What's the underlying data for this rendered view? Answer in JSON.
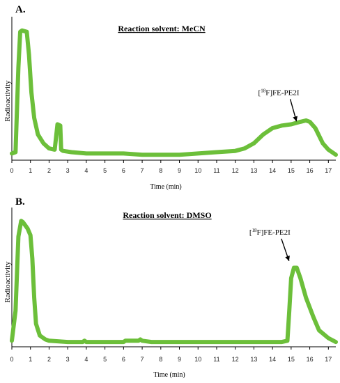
{
  "colors": {
    "trace": "#6cbf3a",
    "axis": "#000000",
    "tick": "#222222"
  },
  "charts": [
    {
      "panel": "A.",
      "title": "Reaction solvent: MeCN",
      "xlabel": "Time (min)",
      "ylabel": "Radioactivity",
      "xticks": [
        "0",
        "1",
        "2",
        "3",
        "4",
        "5",
        "6",
        "7",
        "8",
        "9",
        "10",
        "11",
        "12",
        "13",
        "14",
        "15",
        "16",
        "17"
      ],
      "annotation": {
        "label": "[18F]FE-PE2I",
        "pre": "[",
        "sup": "18",
        "post": "F]FE-PE2I",
        "x": 15.4,
        "y": 0.24
      }
    },
    {
      "panel": "B.",
      "title": "Reaction solvent: DMSO",
      "xlabel": "Time (min)",
      "ylabel": "Radioactivity",
      "xticks": [
        "0",
        "1",
        "2",
        "3",
        "4",
        "5",
        "6",
        "7",
        "8",
        "9",
        "10",
        "11",
        "12",
        "13",
        "14",
        "15",
        "16",
        "17"
      ],
      "annotation": {
        "label": "[18F]FE-PE2I",
        "pre": "[",
        "sup": "18",
        "post": "F]FE-PE2I",
        "x": 15.0,
        "y": 0.6
      }
    }
  ],
  "chart_data": [
    {
      "type": "line",
      "title": "Reaction solvent: MeCN",
      "xlabel": "Time (min)",
      "ylabel": "Radioactivity",
      "xlim": [
        0,
        17.4
      ],
      "ylim": [
        0,
        1
      ],
      "grid": false,
      "series": [
        {
          "x": [
            0,
            0.2,
            0.35,
            0.45,
            0.55,
            0.8,
            0.92,
            1.05,
            1.2,
            1.4,
            1.7,
            2.0,
            2.3,
            2.45,
            2.6,
            2.65,
            2.75,
            3.2,
            4,
            5,
            6,
            7,
            8,
            9,
            10,
            11,
            12,
            12.5,
            13,
            13.5,
            14,
            14.5,
            15,
            15.5,
            15.8,
            16,
            16.3,
            16.7,
            17,
            17.4
          ],
          "y": [
            0.02,
            0.03,
            0.7,
            0.98,
            0.99,
            0.98,
            0.8,
            0.5,
            0.3,
            0.17,
            0.1,
            0.06,
            0.05,
            0.25,
            0.24,
            0.05,
            0.04,
            0.03,
            0.02,
            0.02,
            0.02,
            0.01,
            0.01,
            0.01,
            0.02,
            0.03,
            0.04,
            0.06,
            0.1,
            0.17,
            0.22,
            0.24,
            0.25,
            0.27,
            0.28,
            0.27,
            0.22,
            0.1,
            0.05,
            0.01
          ]
        }
      ]
    },
    {
      "type": "line",
      "title": "Reaction solvent: DMSO",
      "xlabel": "Time (min)",
      "ylabel": "Radioactivity",
      "xlim": [
        0,
        17.4
      ],
      "ylim": [
        0,
        1
      ],
      "grid": false,
      "series": [
        {
          "x": [
            0,
            0.2,
            0.35,
            0.5,
            0.6,
            0.7,
            0.85,
            1.0,
            1.1,
            1.2,
            1.3,
            1.5,
            1.8,
            2,
            3,
            3.8,
            3.9,
            4,
            5,
            6,
            6.1,
            6.8,
            6.9,
            7,
            7.5,
            8,
            9,
            10,
            11,
            12,
            13,
            14,
            14.5,
            14.8,
            14.9,
            15,
            15.15,
            15.3,
            15.5,
            15.8,
            16.2,
            16.5,
            17,
            17.4
          ],
          "y": [
            0.02,
            0.25,
            0.82,
            0.94,
            0.93,
            0.91,
            0.88,
            0.83,
            0.65,
            0.35,
            0.15,
            0.06,
            0.03,
            0.02,
            0.01,
            0.01,
            0.02,
            0.01,
            0.01,
            0.01,
            0.02,
            0.02,
            0.03,
            0.02,
            0.01,
            0.01,
            0.01,
            0.01,
            0.01,
            0.01,
            0.01,
            0.01,
            0.01,
            0.02,
            0.25,
            0.5,
            0.58,
            0.58,
            0.5,
            0.35,
            0.2,
            0.1,
            0.04,
            0.01
          ]
        }
      ]
    }
  ]
}
